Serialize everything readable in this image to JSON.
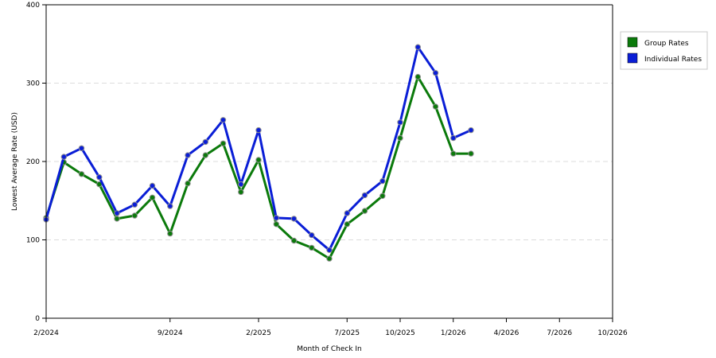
{
  "chart_data": {
    "type": "line",
    "xlabel": "Month of Check In",
    "ylabel": "Lowest Average Rate (USD)",
    "ylim": [
      0,
      400
    ],
    "yticks": [
      0,
      100,
      200,
      300,
      400
    ],
    "xlim": [
      "2/2024",
      "10/2026"
    ],
    "xticks": [
      "2/2024",
      "9/2024",
      "2/2025",
      "7/2025",
      "10/2025",
      "1/2026",
      "4/2026",
      "7/2026",
      "10/2026"
    ],
    "x": [
      "2/2024",
      "3/2024",
      "5/2024",
      "6/2024",
      "7/2024",
      "8/2024",
      "9/2024",
      "10/2024",
      "11/2024",
      "12/2024",
      "1/2025",
      "2/2025",
      "3/2025",
      "4/2025",
      "5/2025",
      "6/2025",
      "7/2025",
      "8/2025",
      "9/2025",
      "10/2025",
      "11/2025",
      "12/2025",
      "1/2026",
      "2/2026",
      "3/2026",
      "4/2026",
      "5/2026",
      "6/2026",
      "7/2026",
      "8/2026",
      "9/2026",
      "10/2026"
    ],
    "grid": "horizontal dashed",
    "legend_position": "right",
    "series": [
      {
        "name": "Group Rates",
        "color": "#0b7a0b",
        "points": [
          {
            "x": "2/2024",
            "y": 128
          },
          {
            "x": "3/2024",
            "y": 199
          },
          {
            "x": "4/2024",
            "y": 184
          },
          {
            "x": "5/2024",
            "y": 171
          },
          {
            "x": "6/2024",
            "y": 127
          },
          {
            "x": "7/2024",
            "y": 131
          },
          {
            "x": "8/2024",
            "y": 154
          },
          {
            "x": "9/2024",
            "y": 108
          },
          {
            "x": "10/2024",
            "y": 172
          },
          {
            "x": "11/2024",
            "y": 208
          },
          {
            "x": "12/2024",
            "y": 223
          },
          {
            "x": "1/2025",
            "y": 161
          },
          {
            "x": "2/2025",
            "y": 202
          },
          {
            "x": "3/2025",
            "y": 120
          },
          {
            "x": "4/2025",
            "y": 99
          },
          {
            "x": "5/2025",
            "y": 90
          },
          {
            "x": "6/2025",
            "y": 76
          },
          {
            "x": "7/2025",
            "y": 120
          },
          {
            "x": "8/2025",
            "y": 137
          },
          {
            "x": "9/2025",
            "y": 156
          },
          {
            "x": "10/2025",
            "y": 230
          },
          {
            "x": "11/2025",
            "y": 308
          },
          {
            "x": "12/2025",
            "y": 270
          },
          {
            "x": "1/2026",
            "y": 210
          },
          {
            "x": "2/2026",
            "y": 210
          }
        ]
      },
      {
        "name": "Individual Rates",
        "color": "#0a1ed6",
        "points": [
          {
            "x": "2/2024",
            "y": 126
          },
          {
            "x": "3/2024",
            "y": 206
          },
          {
            "x": "4/2024",
            "y": 217
          },
          {
            "x": "5/2024",
            "y": 180
          },
          {
            "x": "6/2024",
            "y": 134
          },
          {
            "x": "7/2024",
            "y": 145
          },
          {
            "x": "8/2024",
            "y": 169
          },
          {
            "x": "9/2024",
            "y": 143
          },
          {
            "x": "10/2024",
            "y": 208
          },
          {
            "x": "11/2024",
            "y": 225
          },
          {
            "x": "12/2024",
            "y": 253
          },
          {
            "x": "1/2025",
            "y": 171
          },
          {
            "x": "2/2025",
            "y": 240
          },
          {
            "x": "3/2025",
            "y": 128
          },
          {
            "x": "4/2025",
            "y": 127
          },
          {
            "x": "5/2025",
            "y": 106
          },
          {
            "x": "6/2025",
            "y": 87
          },
          {
            "x": "7/2025",
            "y": 134
          },
          {
            "x": "8/2025",
            "y": 157
          },
          {
            "x": "9/2025",
            "y": 175
          },
          {
            "x": "10/2025",
            "y": 250
          },
          {
            "x": "11/2025",
            "y": 346
          },
          {
            "x": "12/2025",
            "y": 313
          },
          {
            "x": "1/2026",
            "y": 230
          },
          {
            "x": "2/2026",
            "y": 240
          }
        ]
      }
    ],
    "legend": [
      {
        "label": "Group Rates",
        "color": "#0b7a0b"
      },
      {
        "label": "Individual Rates",
        "color": "#0a1ed6"
      }
    ]
  }
}
